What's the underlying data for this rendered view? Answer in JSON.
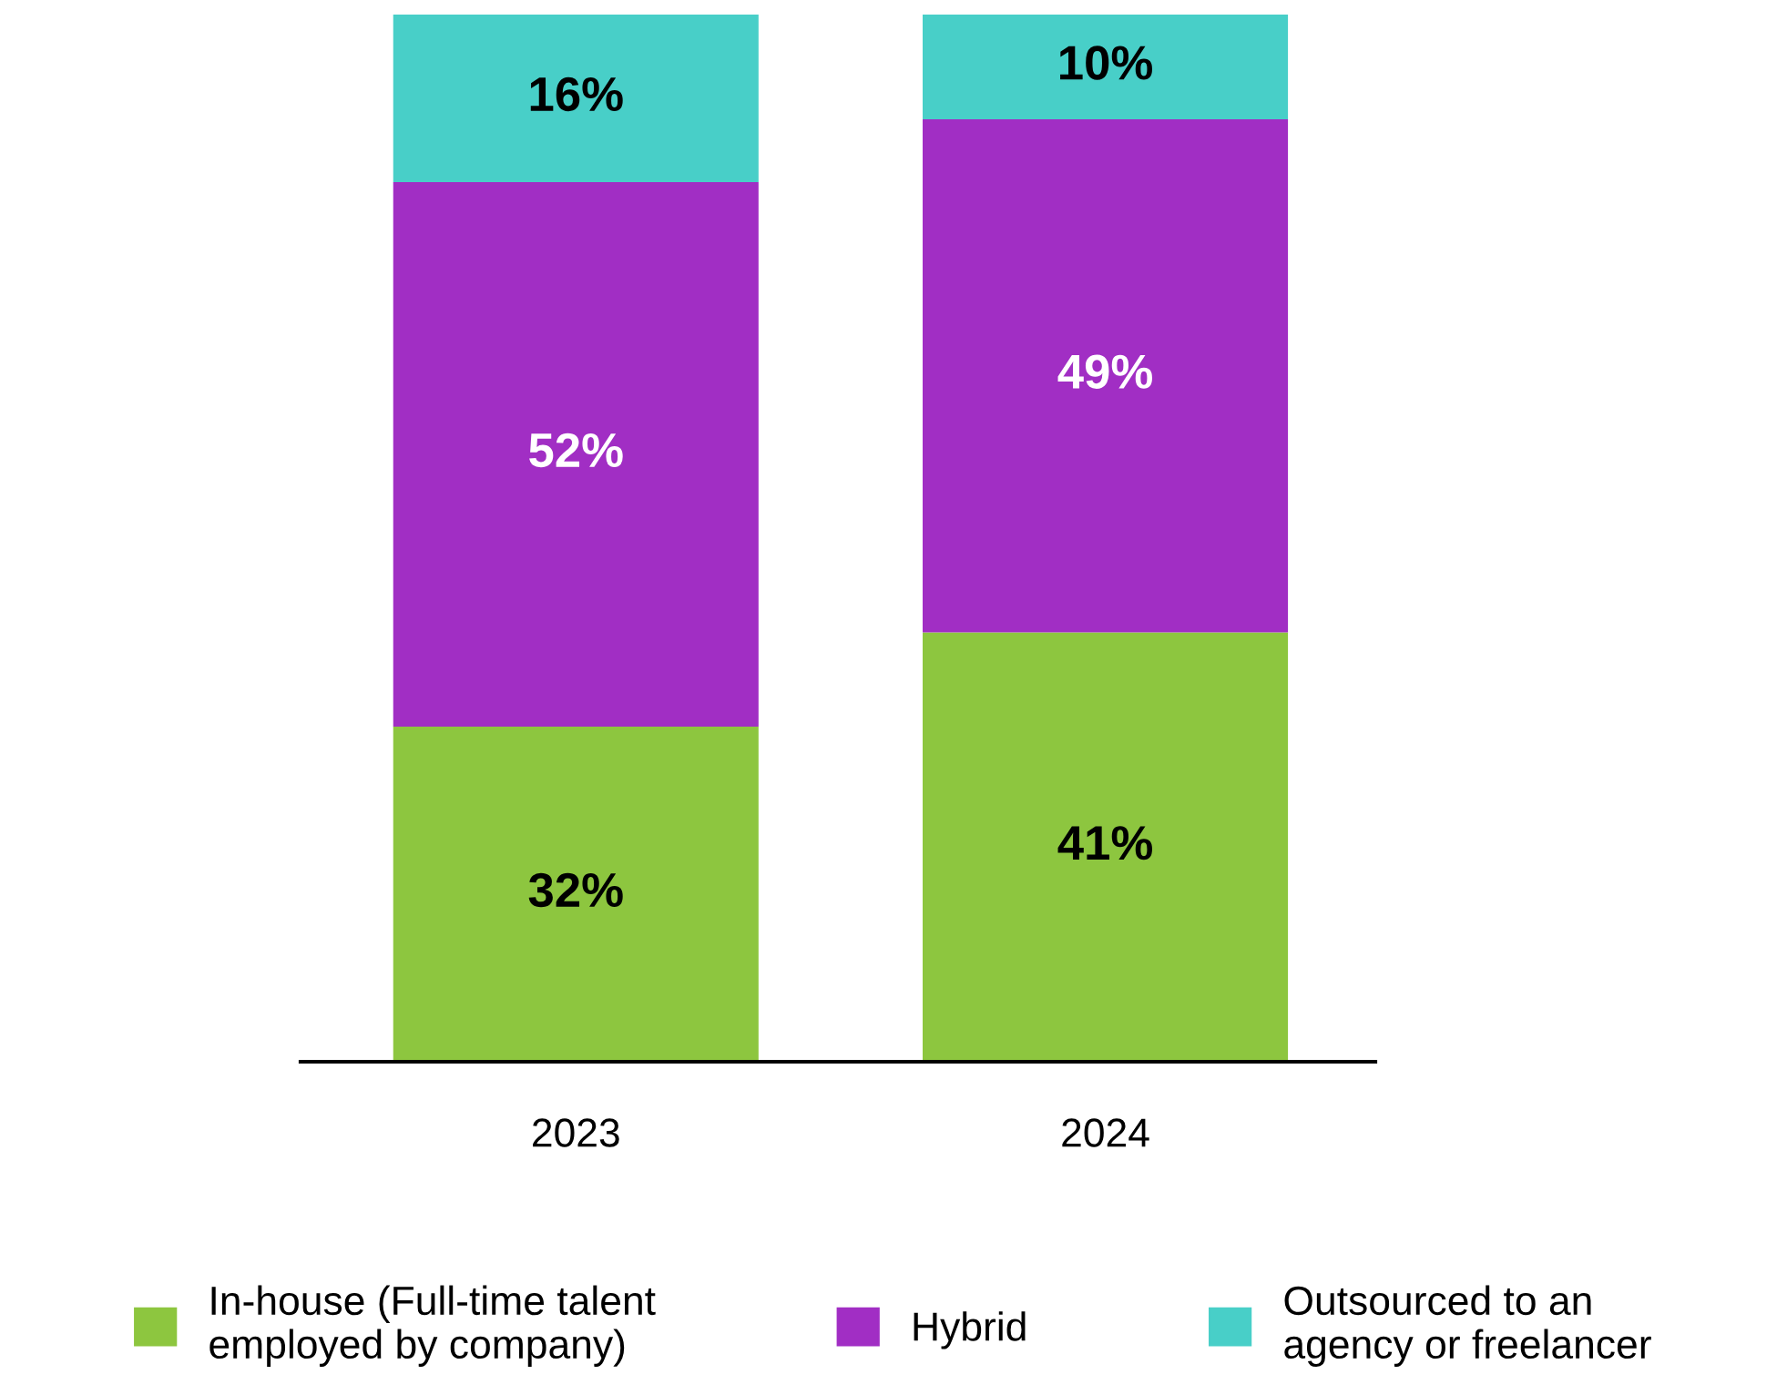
{
  "chart_data": {
    "type": "bar",
    "stacked": true,
    "categories": [
      "2023",
      "2024"
    ],
    "series": [
      {
        "name": "In-house (Full-time talent employed by company)",
        "color": "#8dc63f",
        "values": [
          32,
          41
        ],
        "value_labels": [
          "32%",
          "41%"
        ]
      },
      {
        "name": "Hybrid",
        "color": "#a12ec4",
        "values": [
          52,
          49
        ],
        "value_labels": [
          "52%",
          "49%"
        ]
      },
      {
        "name": "Outsourced to an agency or freelancer",
        "color": "#48cfc8",
        "values": [
          16,
          10
        ],
        "value_labels": [
          "16%",
          "10%"
        ]
      }
    ],
    "ylim": [
      0,
      100
    ],
    "tick_labels": "x",
    "legend": "bottom",
    "grid": false
  }
}
